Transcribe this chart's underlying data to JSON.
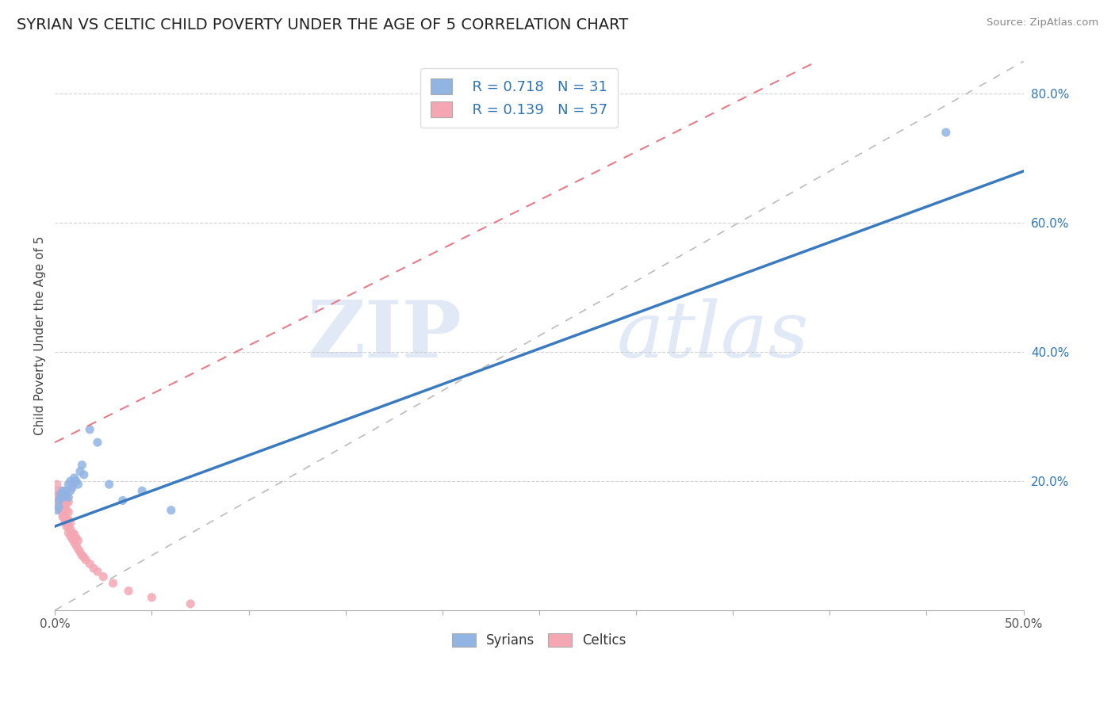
{
  "title": "SYRIAN VS CELTIC CHILD POVERTY UNDER THE AGE OF 5 CORRELATION CHART",
  "source": "Source: ZipAtlas.com",
  "ylabel": "Child Poverty Under the Age of 5",
  "xlim": [
    0.0,
    0.5
  ],
  "ylim": [
    0.0,
    0.85
  ],
  "watermark_zip": "ZIP",
  "watermark_atlas": "atlas",
  "legend_r1": "R = 0.718",
  "legend_n1": "N = 31",
  "legend_r2": "R = 0.139",
  "legend_n2": "N = 57",
  "color_syrian": "#92b4e3",
  "color_celtic": "#f4a7b3",
  "color_line_syrian": "#3a7abf",
  "color_line_celtic": "#e87a8a",
  "color_text_blue": "#2e75b6",
  "color_grid": "#c8c8c8",
  "background": "#ffffff",
  "syrians_x": [
    0.001,
    0.002,
    0.002,
    0.003,
    0.003,
    0.004,
    0.004,
    0.005,
    0.005,
    0.006,
    0.006,
    0.007,
    0.007,
    0.008,
    0.008,
    0.009,
    0.009,
    0.01,
    0.01,
    0.011,
    0.012,
    0.013,
    0.014,
    0.015,
    0.018,
    0.022,
    0.028,
    0.035,
    0.045,
    0.06,
    0.46
  ],
  "syrians_y": [
    0.155,
    0.16,
    0.17,
    0.175,
    0.18,
    0.175,
    0.185,
    0.178,
    0.182,
    0.18,
    0.185,
    0.175,
    0.195,
    0.185,
    0.2,
    0.19,
    0.195,
    0.2,
    0.205,
    0.2,
    0.195,
    0.215,
    0.225,
    0.21,
    0.28,
    0.26,
    0.195,
    0.17,
    0.185,
    0.155,
    0.74
  ],
  "celtics_x": [
    0.001,
    0.001,
    0.001,
    0.002,
    0.002,
    0.002,
    0.002,
    0.003,
    0.003,
    0.003,
    0.003,
    0.003,
    0.004,
    0.004,
    0.004,
    0.004,
    0.004,
    0.005,
    0.005,
    0.005,
    0.005,
    0.005,
    0.006,
    0.006,
    0.006,
    0.006,
    0.006,
    0.006,
    0.006,
    0.007,
    0.007,
    0.007,
    0.007,
    0.007,
    0.008,
    0.008,
    0.008,
    0.009,
    0.009,
    0.01,
    0.01,
    0.011,
    0.011,
    0.012,
    0.012,
    0.013,
    0.014,
    0.015,
    0.016,
    0.018,
    0.02,
    0.022,
    0.025,
    0.03,
    0.038,
    0.05,
    0.07
  ],
  "celtics_y": [
    0.175,
    0.185,
    0.195,
    0.16,
    0.165,
    0.175,
    0.18,
    0.155,
    0.16,
    0.165,
    0.17,
    0.185,
    0.145,
    0.15,
    0.155,
    0.165,
    0.175,
    0.14,
    0.148,
    0.158,
    0.165,
    0.175,
    0.13,
    0.135,
    0.14,
    0.155,
    0.165,
    0.175,
    0.185,
    0.12,
    0.13,
    0.14,
    0.152,
    0.168,
    0.115,
    0.125,
    0.135,
    0.11,
    0.12,
    0.105,
    0.118,
    0.1,
    0.112,
    0.095,
    0.108,
    0.09,
    0.085,
    0.082,
    0.078,
    0.072,
    0.065,
    0.06,
    0.052,
    0.042,
    0.03,
    0.02,
    0.01
  ],
  "celtic_trendline_x0": 0.0,
  "celtic_trendline_y0": 0.26,
  "celtic_trendline_x1": 0.08,
  "celtic_trendline_y1": 0.38,
  "syrian_trendline_x0": 0.0,
  "syrian_trendline_y0": 0.13,
  "syrian_trendline_x1": 0.5,
  "syrian_trendline_y1": 0.68
}
